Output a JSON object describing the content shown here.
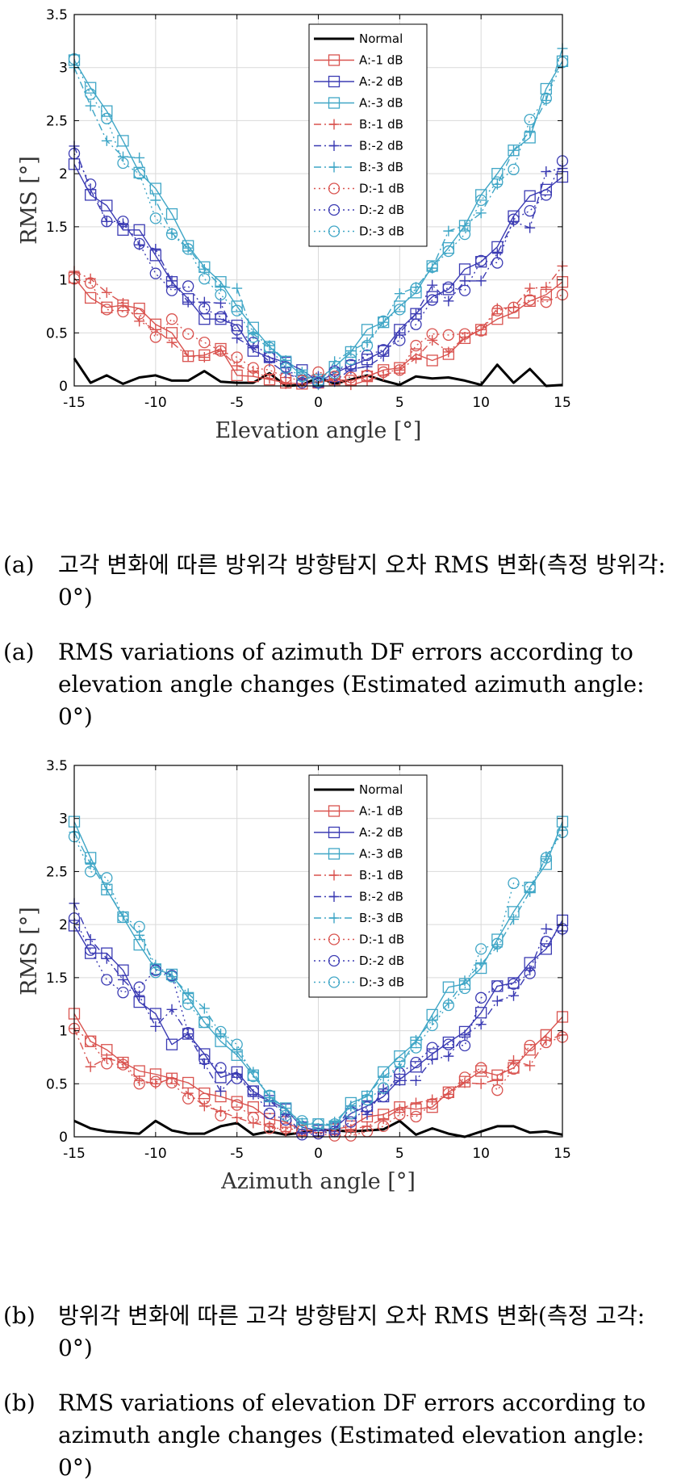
{
  "colors": {
    "normal": "#000000",
    "red": "#d9534f",
    "blue": "#3b3bb3",
    "cyan": "#3fa6c6",
    "grid": "#d9d9d9",
    "axis": "#000000"
  },
  "legend_labels": [
    "Normal",
    "A:-1 dB",
    "A:-2 dB",
    "A:-3 dB",
    "B:-1 dB",
    "B:-2 dB",
    "B:-3 dB",
    "D:-1 dB",
    "D:-2 dB",
    "D:-3 dB"
  ],
  "captions": {
    "a_tag": "(a)",
    "a_ko": "고각 변화에 따른 방위각 방향탐지 오차 RMS 변화(측정 방위각: 0°)",
    "a_en": "RMS variations of azimuth DF errors according to elevation angle changes (Estimated azimuth angle: 0°)",
    "b_tag": "(b)",
    "b_ko": "방위각 변화에 따른 고각 방향탐지 오차 RMS 변화(측정 고각: 0°)",
    "b_en": "RMS variations of elevation DF errors according to azimuth angle changes (Estimated elevation angle: 0°)"
  },
  "chart_data": [
    {
      "type": "line",
      "xlabel": "Elevation angle [°]",
      "ylabel": "RMS [°]",
      "xlim": [
        -15,
        15
      ],
      "ylim": [
        0,
        3.5
      ],
      "xticks": [
        -15,
        -10,
        -5,
        0,
        5,
        10,
        15
      ],
      "yticks": [
        0,
        0.5,
        1,
        1.5,
        2,
        2.5,
        3,
        3.5
      ],
      "grid": true,
      "legend_position": "top-center",
      "x": [
        -15,
        -14,
        -13,
        -12,
        -11,
        -10,
        -9,
        -8,
        -7,
        -6,
        -5,
        -4,
        -3,
        -2,
        -1,
        0,
        1,
        2,
        3,
        4,
        5,
        6,
        7,
        8,
        9,
        10,
        11,
        12,
        13,
        14,
        15
      ],
      "series": [
        {
          "name": "Normal",
          "color": "#000000",
          "dash": "solid",
          "marker": "none",
          "width": 3,
          "values": [
            0.26,
            0.03,
            0.1,
            0.02,
            0.08,
            0.1,
            0.05,
            0.05,
            0.14,
            0.04,
            0.03,
            0.03,
            0.12,
            0.0,
            0.01,
            0.08,
            0.02,
            0.06,
            0.1,
            0.05,
            0.01,
            0.09,
            0.07,
            0.08,
            0.05,
            0.01,
            0.2,
            0.03,
            0.16,
            0.0,
            0.01
          ]
        },
        {
          "name": "A:-1 dB",
          "color": "#d9534f",
          "dash": "solid",
          "marker": "square",
          "width": 1.4,
          "values": [
            1.02,
            0.83,
            0.74,
            0.76,
            0.73,
            0.58,
            0.5,
            0.28,
            0.29,
            0.35,
            0.1,
            0.09,
            0.06,
            0.03,
            0.02,
            0.03,
            0.06,
            0.05,
            0.09,
            0.15,
            0.17,
            0.3,
            0.24,
            0.3,
            0.45,
            0.53,
            0.63,
            0.69,
            0.8,
            0.86,
            0.98
          ]
        },
        {
          "name": "A:-2 dB",
          "color": "#3b3bb3",
          "dash": "solid",
          "marker": "square",
          "width": 1.4,
          "values": [
            2.09,
            1.8,
            1.7,
            1.47,
            1.47,
            1.23,
            0.98,
            0.82,
            0.63,
            0.63,
            0.57,
            0.33,
            0.27,
            0.22,
            0.15,
            0.04,
            0.12,
            0.19,
            0.25,
            0.33,
            0.53,
            0.68,
            0.84,
            0.91,
            1.1,
            1.17,
            1.31,
            1.6,
            1.79,
            1.85,
            1.97
          ]
        },
        {
          "name": "A:-3 dB",
          "color": "#3fa6c6",
          "dash": "solid",
          "marker": "square",
          "width": 1.4,
          "values": [
            3.07,
            2.81,
            2.59,
            2.31,
            2.01,
            1.86,
            1.62,
            1.32,
            1.12,
            0.98,
            0.75,
            0.55,
            0.37,
            0.23,
            0.1,
            0.06,
            0.18,
            0.32,
            0.53,
            0.6,
            0.75,
            0.88,
            1.13,
            1.3,
            1.51,
            1.8,
            2.0,
            2.22,
            2.34,
            2.8,
            3.06
          ]
        },
        {
          "name": "B:-1 dB",
          "color": "#d9534f",
          "dash": "dashdot",
          "marker": "plus",
          "width": 1.4,
          "values": [
            1.08,
            1.01,
            0.88,
            0.78,
            0.61,
            0.53,
            0.41,
            0.28,
            0.27,
            0.33,
            0.19,
            0.14,
            0.07,
            0.02,
            0.02,
            0.04,
            0.07,
            0.01,
            0.05,
            0.1,
            0.15,
            0.26,
            0.43,
            0.32,
            0.46,
            0.53,
            0.73,
            0.74,
            0.92,
            0.93,
            1.13
          ]
        },
        {
          "name": "B:-2 dB",
          "color": "#3b3bb3",
          "dash": "dashdot",
          "marker": "plus",
          "width": 1.4,
          "values": [
            2.26,
            1.85,
            1.55,
            1.53,
            1.33,
            1.29,
            0.99,
            0.79,
            0.79,
            0.78,
            0.45,
            0.36,
            0.23,
            0.12,
            0.06,
            0.09,
            0.04,
            0.16,
            0.18,
            0.28,
            0.5,
            0.68,
            0.95,
            0.8,
            0.99,
            0.99,
            1.25,
            1.55,
            1.49,
            2.02,
            2.05
          ]
        },
        {
          "name": "B:-3 dB",
          "color": "#3fa6c6",
          "dash": "dashdot",
          "marker": "plus",
          "width": 1.4,
          "values": [
            3.0,
            2.64,
            2.31,
            2.16,
            2.15,
            1.75,
            1.44,
            1.3,
            1.1,
            0.94,
            0.92,
            0.49,
            0.38,
            0.24,
            0.13,
            0.01,
            0.23,
            0.33,
            0.41,
            0.6,
            0.87,
            0.93,
            1.11,
            1.46,
            1.51,
            1.63,
            1.9,
            2.22,
            2.4,
            2.69,
            3.18
          ]
        },
        {
          "name": "D:-1 dB",
          "color": "#d9534f",
          "dash": "dotted",
          "marker": "circle",
          "width": 1.4,
          "values": [
            1.01,
            0.97,
            0.72,
            0.7,
            0.68,
            0.46,
            0.63,
            0.49,
            0.41,
            0.33,
            0.27,
            0.17,
            0.15,
            0.08,
            0.05,
            0.13,
            0.09,
            0.08,
            0.1,
            0.13,
            0.15,
            0.38,
            0.49,
            0.48,
            0.49,
            0.52,
            0.71,
            0.74,
            0.81,
            0.79,
            0.86
          ]
        },
        {
          "name": "D:-2 dB",
          "color": "#3b3bb3",
          "dash": "dotted",
          "marker": "circle",
          "width": 1.4,
          "values": [
            2.19,
            1.9,
            1.55,
            1.55,
            1.34,
            1.06,
            0.9,
            0.94,
            0.73,
            0.65,
            0.53,
            0.41,
            0.27,
            0.18,
            0.03,
            0.03,
            0.14,
            0.2,
            0.29,
            0.34,
            0.43,
            0.58,
            0.81,
            0.93,
            0.9,
            1.18,
            1.16,
            1.57,
            1.65,
            1.8,
            2.12
          ]
        },
        {
          "name": "D:-3 dB",
          "color": "#3fa6c6",
          "dash": "dotted",
          "marker": "circle",
          "width": 1.4,
          "values": [
            3.08,
            2.75,
            2.52,
            2.1,
            2.0,
            1.58,
            1.43,
            1.29,
            1.01,
            0.86,
            0.71,
            0.46,
            0.36,
            0.17,
            0.09,
            0.04,
            0.12,
            0.25,
            0.38,
            0.61,
            0.72,
            0.92,
            1.12,
            1.27,
            1.43,
            1.75,
            1.92,
            2.04,
            2.51,
            2.71,
            3.05
          ]
        }
      ]
    },
    {
      "type": "line",
      "xlabel": "Azimuth angle [°]",
      "ylabel": "RMS [°]",
      "xlim": [
        -15,
        15
      ],
      "ylim": [
        0,
        3.5
      ],
      "xticks": [
        -15,
        -10,
        -5,
        0,
        5,
        10,
        15
      ],
      "yticks": [
        0,
        0.5,
        1,
        1.5,
        2,
        2.5,
        3,
        3.5
      ],
      "grid": true,
      "legend_position": "top-center",
      "x": [
        -15,
        -14,
        -13,
        -12,
        -11,
        -10,
        -9,
        -8,
        -7,
        -6,
        -5,
        -4,
        -3,
        -2,
        -1,
        0,
        1,
        2,
        3,
        4,
        5,
        6,
        7,
        8,
        9,
        10,
        11,
        12,
        13,
        14,
        15
      ],
      "series": [
        {
          "name": "Normal",
          "color": "#000000",
          "dash": "solid",
          "marker": "none",
          "width": 3,
          "values": [
            0.15,
            0.08,
            0.05,
            0.04,
            0.03,
            0.15,
            0.06,
            0.03,
            0.03,
            0.1,
            0.13,
            0.02,
            0.05,
            0.02,
            0.04,
            0.07,
            0.06,
            0.05,
            0.06,
            0.07,
            0.15,
            0.02,
            0.08,
            0.03,
            0.0,
            0.05,
            0.1,
            0.1,
            0.04,
            0.05,
            0.02
          ]
        },
        {
          "name": "A:-1 dB",
          "color": "#d9534f",
          "dash": "solid",
          "marker": "square",
          "width": 1.4,
          "values": [
            1.16,
            0.9,
            0.82,
            0.7,
            0.62,
            0.59,
            0.55,
            0.51,
            0.41,
            0.38,
            0.33,
            0.28,
            0.17,
            0.14,
            0.06,
            0.06,
            0.07,
            0.1,
            0.19,
            0.21,
            0.28,
            0.26,
            0.28,
            0.42,
            0.52,
            0.62,
            0.58,
            0.65,
            0.82,
            0.96,
            1.13
          ]
        },
        {
          "name": "A:-2 dB",
          "color": "#3b3bb3",
          "dash": "solid",
          "marker": "square",
          "width": 1.4,
          "values": [
            1.99,
            1.73,
            1.73,
            1.57,
            1.27,
            1.16,
            0.87,
            0.97,
            0.78,
            0.56,
            0.61,
            0.43,
            0.34,
            0.26,
            0.09,
            0.06,
            0.08,
            0.22,
            0.29,
            0.38,
            0.54,
            0.66,
            0.78,
            0.89,
            0.99,
            1.17,
            1.42,
            1.45,
            1.64,
            1.77,
            2.04
          ]
        },
        {
          "name": "A:-3 dB",
          "color": "#3fa6c6",
          "dash": "solid",
          "marker": "square",
          "width": 1.4,
          "values": [
            2.97,
            2.63,
            2.33,
            2.07,
            1.81,
            1.58,
            1.53,
            1.31,
            1.08,
            0.9,
            0.77,
            0.58,
            0.38,
            0.27,
            0.12,
            0.12,
            0.1,
            0.32,
            0.38,
            0.61,
            0.76,
            0.89,
            1.15,
            1.41,
            1.44,
            1.59,
            1.86,
            2.12,
            2.35,
            2.57,
            2.97
          ]
        },
        {
          "name": "B:-1 dB",
          "color": "#d9534f",
          "dash": "dashdot",
          "marker": "plus",
          "width": 1.4,
          "values": [
            1.02,
            0.66,
            0.74,
            0.7,
            0.53,
            0.5,
            0.55,
            0.41,
            0.29,
            0.24,
            0.18,
            0.13,
            0.1,
            0.05,
            0.03,
            0.04,
            0.05,
            0.07,
            0.1,
            0.17,
            0.26,
            0.32,
            0.35,
            0.4,
            0.51,
            0.5,
            0.54,
            0.72,
            0.67,
            0.91,
            0.96
          ]
        },
        {
          "name": "B:-2 dB",
          "color": "#3b3bb3",
          "dash": "dashdot",
          "marker": "plus",
          "width": 1.4,
          "values": [
            2.2,
            1.86,
            1.68,
            1.48,
            1.33,
            1.04,
            1.2,
            0.97,
            0.69,
            0.43,
            0.59,
            0.4,
            0.34,
            0.21,
            0.03,
            0.06,
            0.05,
            0.29,
            0.21,
            0.45,
            0.53,
            0.53,
            0.73,
            0.76,
            0.96,
            1.06,
            1.28,
            1.33,
            1.57,
            1.96,
            1.94
          ]
        },
        {
          "name": "B:-3 dB",
          "color": "#3fa6c6",
          "dash": "dashdot",
          "marker": "plus",
          "width": 1.4,
          "values": [
            2.87,
            2.57,
            2.33,
            2.08,
            1.9,
            1.62,
            1.51,
            1.35,
            1.21,
            0.97,
            0.8,
            0.61,
            0.37,
            0.27,
            0.13,
            0.08,
            0.14,
            0.29,
            0.39,
            0.57,
            0.66,
            0.91,
            1.1,
            1.26,
            1.47,
            1.63,
            1.79,
            2.05,
            2.31,
            2.64,
            2.89
          ]
        },
        {
          "name": "D:-1 dB",
          "color": "#d9534f",
          "dash": "dotted",
          "marker": "circle",
          "width": 1.4,
          "values": [
            1.02,
            0.9,
            0.69,
            0.68,
            0.5,
            0.52,
            0.51,
            0.36,
            0.36,
            0.2,
            0.3,
            0.18,
            0.08,
            0.08,
            0.06,
            0.03,
            0.01,
            0.01,
            0.05,
            0.1,
            0.21,
            0.19,
            0.31,
            0.41,
            0.56,
            0.65,
            0.44,
            0.64,
            0.86,
            0.89,
            0.94
          ]
        },
        {
          "name": "D:-2 dB",
          "color": "#3b3bb3",
          "dash": "dotted",
          "marker": "circle",
          "width": 1.4,
          "values": [
            2.06,
            1.76,
            1.48,
            1.36,
            1.41,
            1.57,
            1.52,
            0.98,
            0.73,
            0.65,
            0.55,
            0.43,
            0.22,
            0.16,
            0.02,
            0.03,
            0.05,
            0.14,
            0.28,
            0.38,
            0.6,
            0.7,
            0.84,
            0.87,
            0.86,
            1.31,
            1.42,
            1.44,
            1.54,
            1.84,
            1.96
          ]
        },
        {
          "name": "D:-3 dB",
          "color": "#3fa6c6",
          "dash": "dotted",
          "marker": "circle",
          "width": 1.4,
          "values": [
            2.83,
            2.5,
            2.44,
            2.07,
            1.98,
            1.55,
            1.51,
            1.25,
            1.08,
            0.99,
            0.87,
            0.57,
            0.39,
            0.2,
            0.15,
            0.12,
            0.12,
            0.22,
            0.35,
            0.46,
            0.7,
            0.84,
            1.05,
            1.24,
            1.4,
            1.77,
            1.82,
            2.39,
            2.35,
            2.63,
            2.87
          ]
        }
      ]
    }
  ]
}
